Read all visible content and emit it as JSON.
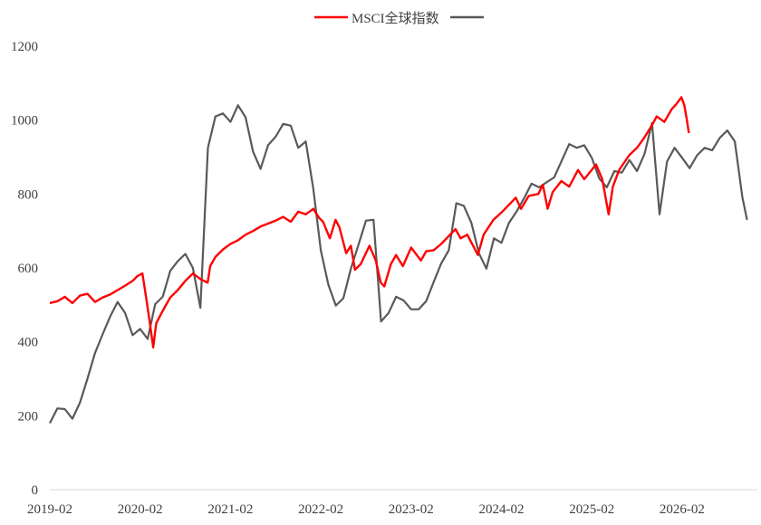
{
  "chart_data": {
    "type": "line",
    "title": "",
    "xlabel": "",
    "ylabel": "",
    "ylim": [
      0,
      1200
    ],
    "yticks": [
      0,
      200,
      400,
      600,
      800,
      1000,
      1200
    ],
    "xlim": [
      "2019-02",
      "2026-12"
    ],
    "xticks": [
      "2019-02",
      "2020-02",
      "2021-02",
      "2022-02",
      "2023-02",
      "2024-02",
      "2025-02",
      "2026-02"
    ],
    "grid": false,
    "legend": {
      "placement": "top-center"
    },
    "series": [
      {
        "name": "MSCI全球指数",
        "color": "#ff0000",
        "points": [
          [
            "2019-02-01",
            505
          ],
          [
            "2019-03-01",
            510
          ],
          [
            "2019-04-01",
            522
          ],
          [
            "2019-05-01",
            505
          ],
          [
            "2019-06-01",
            525
          ],
          [
            "2019-07-01",
            530
          ],
          [
            "2019-08-01",
            508
          ],
          [
            "2019-09-01",
            520
          ],
          [
            "2019-10-01",
            528
          ],
          [
            "2019-11-01",
            540
          ],
          [
            "2019-12-01",
            552
          ],
          [
            "2020-01-01",
            565
          ],
          [
            "2020-01-20",
            578
          ],
          [
            "2020-02-10",
            585
          ],
          [
            "2020-02-25",
            520
          ],
          [
            "2020-03-10",
            450
          ],
          [
            "2020-03-23",
            385
          ],
          [
            "2020-04-05",
            450
          ],
          [
            "2020-04-20",
            470
          ],
          [
            "2020-05-10",
            495
          ],
          [
            "2020-06-01",
            520
          ],
          [
            "2020-07-01",
            540
          ],
          [
            "2020-08-01",
            565
          ],
          [
            "2020-09-01",
            585
          ],
          [
            "2020-10-01",
            570
          ],
          [
            "2020-10-30",
            560
          ],
          [
            "2020-11-10",
            605
          ],
          [
            "2020-12-01",
            630
          ],
          [
            "2021-01-01",
            650
          ],
          [
            "2021-02-01",
            665
          ],
          [
            "2021-03-01",
            675
          ],
          [
            "2021-04-01",
            690
          ],
          [
            "2021-05-01",
            700
          ],
          [
            "2021-06-01",
            712
          ],
          [
            "2021-07-01",
            720
          ],
          [
            "2021-08-01",
            728
          ],
          [
            "2021-09-01",
            738
          ],
          [
            "2021-10-01",
            725
          ],
          [
            "2021-11-01",
            752
          ],
          [
            "2021-12-01",
            745
          ],
          [
            "2022-01-01",
            760
          ],
          [
            "2022-01-25",
            735
          ],
          [
            "2022-02-10",
            725
          ],
          [
            "2022-03-07",
            680
          ],
          [
            "2022-03-30",
            730
          ],
          [
            "2022-04-15",
            710
          ],
          [
            "2022-05-12",
            640
          ],
          [
            "2022-06-01",
            660
          ],
          [
            "2022-06-17",
            595
          ],
          [
            "2022-07-10",
            610
          ],
          [
            "2022-08-15",
            660
          ],
          [
            "2022-09-10",
            620
          ],
          [
            "2022-09-30",
            560
          ],
          [
            "2022-10-14",
            550
          ],
          [
            "2022-11-10",
            610
          ],
          [
            "2022-12-01",
            635
          ],
          [
            "2022-12-28",
            605
          ],
          [
            "2023-02-01",
            655
          ],
          [
            "2023-03-10",
            620
          ],
          [
            "2023-04-01",
            645
          ],
          [
            "2023-05-01",
            648
          ],
          [
            "2023-06-01",
            665
          ],
          [
            "2023-07-28",
            705
          ],
          [
            "2023-08-18",
            680
          ],
          [
            "2023-09-15",
            690
          ],
          [
            "2023-10-27",
            635
          ],
          [
            "2023-11-20",
            690
          ],
          [
            "2023-12-29",
            730
          ],
          [
            "2024-02-01",
            750
          ],
          [
            "2024-03-28",
            790
          ],
          [
            "2024-04-19",
            760
          ],
          [
            "2024-05-20",
            795
          ],
          [
            "2024-06-28",
            800
          ],
          [
            "2024-07-16",
            825
          ],
          [
            "2024-08-05",
            760
          ],
          [
            "2024-08-25",
            805
          ],
          [
            "2024-09-30",
            835
          ],
          [
            "2024-10-31",
            820
          ],
          [
            "2024-12-06",
            865
          ],
          [
            "2024-12-31",
            840
          ],
          [
            "2025-02-18",
            880
          ],
          [
            "2025-03-13",
            840
          ],
          [
            "2025-04-08",
            745
          ],
          [
            "2025-04-25",
            820
          ],
          [
            "2025-05-20",
            865
          ],
          [
            "2025-06-30",
            905
          ],
          [
            "2025-07-31",
            925
          ],
          [
            "2025-08-28",
            950
          ],
          [
            "2025-09-30",
            985
          ],
          [
            "2025-10-20",
            1010
          ],
          [
            "2025-11-20",
            995
          ],
          [
            "2025-12-20",
            1030
          ],
          [
            "2026-01-10",
            1045
          ],
          [
            "2026-01-28",
            1062
          ],
          [
            "2026-02-10",
            1040
          ],
          [
            "2026-02-20",
            1000
          ],
          [
            "2026-02-28",
            965
          ]
        ]
      },
      {
        "name": "",
        "color": "#595959",
        "points": [
          [
            "2019-02-01",
            180
          ],
          [
            "2019-03-01",
            220
          ],
          [
            "2019-04-01",
            218
          ],
          [
            "2019-05-01",
            192
          ],
          [
            "2019-06-01",
            235
          ],
          [
            "2019-07-01",
            300
          ],
          [
            "2019-08-01",
            370
          ],
          [
            "2019-09-01",
            420
          ],
          [
            "2019-10-01",
            468
          ],
          [
            "2019-11-01",
            508
          ],
          [
            "2019-12-01",
            478
          ],
          [
            "2020-01-01",
            418
          ],
          [
            "2020-02-01",
            435
          ],
          [
            "2020-03-01",
            408
          ],
          [
            "2020-04-01",
            502
          ],
          [
            "2020-05-01",
            522
          ],
          [
            "2020-06-01",
            592
          ],
          [
            "2020-07-01",
            618
          ],
          [
            "2020-08-01",
            638
          ],
          [
            "2020-09-01",
            600
          ],
          [
            "2020-10-01",
            492
          ],
          [
            "2020-11-01",
            925
          ],
          [
            "2020-12-01",
            1010
          ],
          [
            "2021-01-01",
            1018
          ],
          [
            "2021-02-01",
            995
          ],
          [
            "2021-03-01",
            1040
          ],
          [
            "2021-04-01",
            1008
          ],
          [
            "2021-05-01",
            915
          ],
          [
            "2021-06-01",
            868
          ],
          [
            "2021-07-01",
            932
          ],
          [
            "2021-08-01",
            955
          ],
          [
            "2021-09-01",
            990
          ],
          [
            "2021-10-01",
            985
          ],
          [
            "2021-11-01",
            925
          ],
          [
            "2021-12-01",
            942
          ],
          [
            "2022-01-01",
            815
          ],
          [
            "2022-02-01",
            648
          ],
          [
            "2022-03-01",
            555
          ],
          [
            "2022-04-01",
            498
          ],
          [
            "2022-05-01",
            518
          ],
          [
            "2022-06-01",
            598
          ],
          [
            "2022-07-01",
            662
          ],
          [
            "2022-08-01",
            728
          ],
          [
            "2022-09-01",
            730
          ],
          [
            "2022-10-01",
            455
          ],
          [
            "2022-11-01",
            478
          ],
          [
            "2022-12-01",
            522
          ],
          [
            "2023-01-01",
            512
          ],
          [
            "2023-02-01",
            488
          ],
          [
            "2023-03-01",
            488
          ],
          [
            "2023-04-01",
            510
          ],
          [
            "2023-05-01",
            562
          ],
          [
            "2023-06-01",
            612
          ],
          [
            "2023-07-01",
            648
          ],
          [
            "2023-08-01",
            775
          ],
          [
            "2023-09-01",
            768
          ],
          [
            "2023-10-01",
            722
          ],
          [
            "2023-11-01",
            640
          ],
          [
            "2023-12-01",
            598
          ],
          [
            "2024-01-01",
            680
          ],
          [
            "2024-02-01",
            668
          ],
          [
            "2024-03-01",
            722
          ],
          [
            "2024-04-01",
            752
          ],
          [
            "2024-05-01",
            788
          ],
          [
            "2024-06-01",
            828
          ],
          [
            "2024-07-01",
            818
          ],
          [
            "2024-08-01",
            832
          ],
          [
            "2024-09-01",
            845
          ],
          [
            "2024-10-01",
            890
          ],
          [
            "2024-11-01",
            935
          ],
          [
            "2024-12-01",
            925
          ],
          [
            "2025-01-01",
            932
          ],
          [
            "2025-02-01",
            898
          ],
          [
            "2025-03-01",
            842
          ],
          [
            "2025-04-01",
            818
          ],
          [
            "2025-05-01",
            862
          ],
          [
            "2025-06-01",
            858
          ],
          [
            "2025-07-01",
            892
          ],
          [
            "2025-08-01",
            862
          ],
          [
            "2025-09-01",
            908
          ],
          [
            "2025-10-01",
            992
          ],
          [
            "2025-11-01",
            745
          ],
          [
            "2025-12-01",
            888
          ],
          [
            "2026-01-01",
            925
          ],
          [
            "2026-02-01",
            898
          ],
          [
            "2026-03-01",
            870
          ],
          [
            "2026-04-01",
            905
          ],
          [
            "2026-05-01",
            925
          ],
          [
            "2026-06-01",
            918
          ],
          [
            "2026-07-01",
            952
          ],
          [
            "2026-08-01",
            972
          ],
          [
            "2026-09-01",
            942
          ],
          [
            "2026-10-01",
            792
          ],
          [
            "2026-10-20",
            730
          ]
        ]
      }
    ]
  }
}
